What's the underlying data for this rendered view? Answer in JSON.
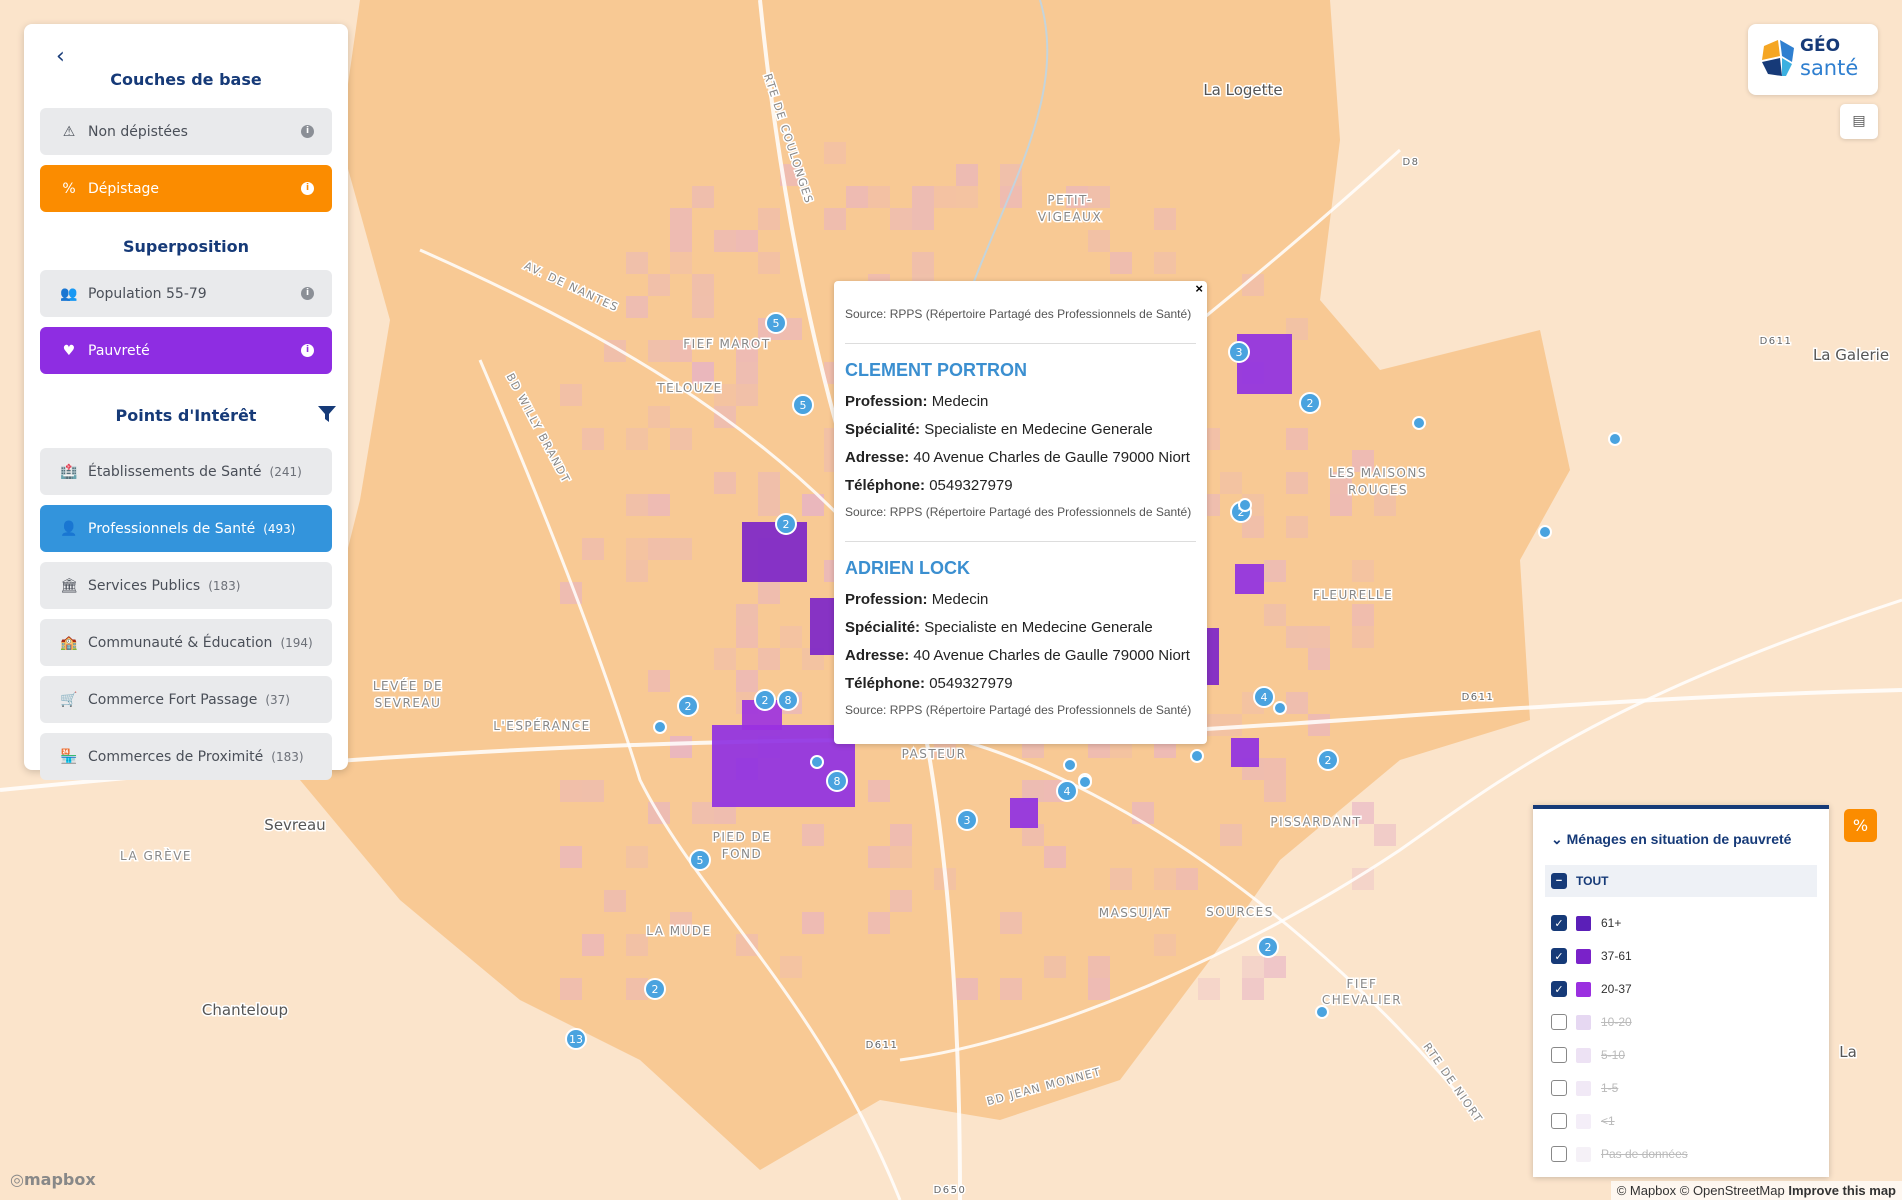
{
  "sidebar": {
    "title": "Couches de base",
    "base_layers": [
      "Non dépistées",
      "Dépistage"
    ],
    "overlay_title": "Superposition",
    "overlays": [
      "Population 55-79",
      "Pauvreté"
    ],
    "poi_title": "Points d'Intérêt",
    "poi": [
      {
        "label": "Établissements de Santé",
        "count": "(241)"
      },
      {
        "label": "Professionnels de Santé",
        "count": "(493)"
      },
      {
        "label": "Services Publics",
        "count": "(183)"
      },
      {
        "label": "Communauté & Éducation",
        "count": "(194)"
      },
      {
        "label": "Commerce Fort Passage",
        "count": "(37)"
      },
      {
        "label": "Commerces de Proximité",
        "count": "(183)"
      }
    ]
  },
  "logo": {
    "line1": "GÉO",
    "line2": "santé"
  },
  "popup": {
    "close": "×",
    "source": "Source: RPPS (Répertoire Partagé des Professionnels de Santé)",
    "field_labels": [
      "Profession:",
      "Spécialité:",
      "Adresse:",
      "Téléphone:"
    ],
    "entries": [
      {
        "name": "CLEMENT PORTRON",
        "profession": "Medecin",
        "specialty": "Specialiste en Medecine Generale",
        "address": "40 Avenue Charles de Gaulle 79000 Niort",
        "phone": "0549327979"
      },
      {
        "name": "ADRIEN LOCK",
        "profession": "Medecin",
        "specialty": "Specialiste en Medecine Generale",
        "address": "40 Avenue Charles de Gaulle 79000 Niort",
        "phone": "0549327979"
      }
    ]
  },
  "legend": {
    "title": "Ménages en situation de pauvreté",
    "all": "TOUT",
    "items": [
      {
        "label": "61+",
        "color": "#5b1fb8",
        "checked": true
      },
      {
        "label": "37-61",
        "color": "#7a22c9",
        "checked": true
      },
      {
        "label": "20-37",
        "color": "#9b30e0",
        "checked": true
      },
      {
        "label": "10-20",
        "color": "#e6d8f2",
        "checked": false
      },
      {
        "label": "5-10",
        "color": "#ede2f4",
        "checked": false
      },
      {
        "label": "1-5",
        "color": "#f1e9f6",
        "checked": false
      },
      {
        "label": "<1",
        "color": "#f4eef8",
        "checked": false
      },
      {
        "label": "Pas de données",
        "color": "#f5f1f7",
        "checked": false
      }
    ]
  },
  "map": {
    "labels": [
      "La Logette",
      "PETIT-",
      "VIGEAUX",
      "FIEF MAROT",
      "TELOUZE",
      "LES MAISONS",
      "ROUGES",
      "FLEURELLE",
      "LEVÉE DE",
      "SEVREAU",
      "L'ESPÉRANCE",
      "PASTEUR",
      "Sevreau",
      "LA GRÈVE",
      "PIED DE",
      "FOND",
      "LA MUDE",
      "MASSUJAT",
      "SOURCES",
      "PISSARDANT",
      "FIEF",
      "CHEVALIER",
      "Chanteloup",
      "La Galerie",
      "La",
      "AV. DE NANTES",
      "BD WILLY BRANDT",
      "RTE DE COULONGES",
      "BD JEAN MONNET",
      "RTE DE NIORT",
      "D8",
      "D611",
      "D611",
      "D611",
      "D650"
    ],
    "clusters": [
      5,
      5,
      2,
      3,
      2,
      2,
      2,
      8,
      8,
      3,
      5,
      2,
      13,
      4,
      2,
      2,
      4,
      2
    ]
  },
  "attribution": {
    "logo": "mapbox",
    "credits": "© Mapbox © OpenStreetMap",
    "improve": "Improve this map"
  }
}
